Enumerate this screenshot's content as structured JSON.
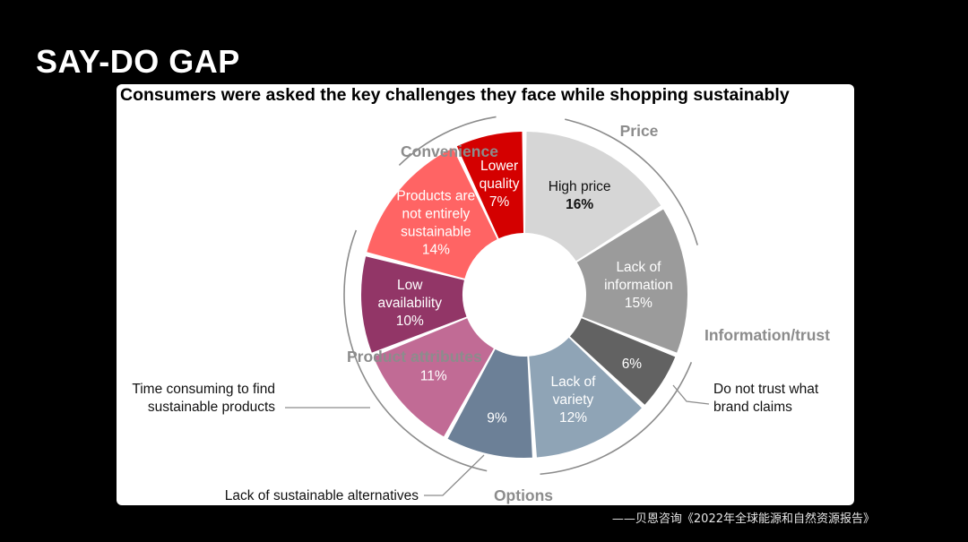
{
  "slide": {
    "title": "SAY-DO GAP",
    "source": "——贝恩咨询《2022年全球能源和自然资源报告》"
  },
  "chart_data": {
    "type": "pie",
    "variant": "donut",
    "title": "Consumers were asked the key challenges they face while shopping sustainably",
    "unit": "%",
    "slices": [
      {
        "id": "high-price",
        "lines": [
          "High price"
        ],
        "value_label": "16%",
        "value": 16,
        "color": "#d6d6d6",
        "text_color": "#111111",
        "group": "Price"
      },
      {
        "id": "lack-of-information",
        "lines": [
          "Lack of",
          "information"
        ],
        "value_label": "15%",
        "value": 15,
        "color": "#9b9b9b",
        "text_color": "#ffffff",
        "group": "Information/trust"
      },
      {
        "id": "do-not-trust",
        "lines": [],
        "value_label": "6%",
        "value": 6,
        "color": "#626262",
        "text_color": "#ffffff",
        "group": "Information/trust"
      },
      {
        "id": "lack-of-variety",
        "lines": [
          "Lack of",
          "variety"
        ],
        "value_label": "12%",
        "value": 12,
        "color": "#8fa4b6",
        "text_color": "#ffffff",
        "group": "Options"
      },
      {
        "id": "lack-of-alternatives",
        "lines": [],
        "value_label": "9%",
        "value": 9,
        "color": "#6c8097",
        "text_color": "#ffffff",
        "group": "Options"
      },
      {
        "id": "time-consuming",
        "lines": [],
        "value_label": "11%",
        "value": 11,
        "color": "#c16b95",
        "text_color": "#ffffff",
        "group": "Product attributes"
      },
      {
        "id": "low-availability",
        "lines": [
          "Low",
          "availability"
        ],
        "value_label": "10%",
        "value": 10,
        "color": "#923667",
        "text_color": "#ffffff",
        "group": "Product attributes"
      },
      {
        "id": "not-sustainable",
        "lines": [
          "Products are",
          "not entirely",
          "sustainable"
        ],
        "value_label": "14%",
        "value": 14,
        "color": "#ff6464",
        "text_color": "#ffffff",
        "group": "Convenience"
      },
      {
        "id": "lower-quality",
        "lines": [
          "Lower",
          "quality"
        ],
        "value_label": "7%",
        "value": 7,
        "color": "#d40000",
        "text_color": "#ffffff",
        "group": "Convenience"
      }
    ],
    "groups": [
      {
        "id": "price",
        "label": "Price"
      },
      {
        "id": "information-trust",
        "label": "Information/trust"
      },
      {
        "id": "options",
        "label": "Options"
      },
      {
        "id": "product-attributes",
        "label": "Product attributes"
      },
      {
        "id": "convenience",
        "label": "Convenience"
      }
    ],
    "callouts": [
      {
        "id": "do-not-trust",
        "lines": [
          "Do not trust what",
          "brand claims"
        ]
      },
      {
        "id": "time-consuming",
        "lines": [
          "Time consuming to find",
          "sustainable products"
        ]
      },
      {
        "id": "lack-of-alternatives",
        "lines": [
          "Lack of sustainable alternatives"
        ]
      }
    ]
  }
}
